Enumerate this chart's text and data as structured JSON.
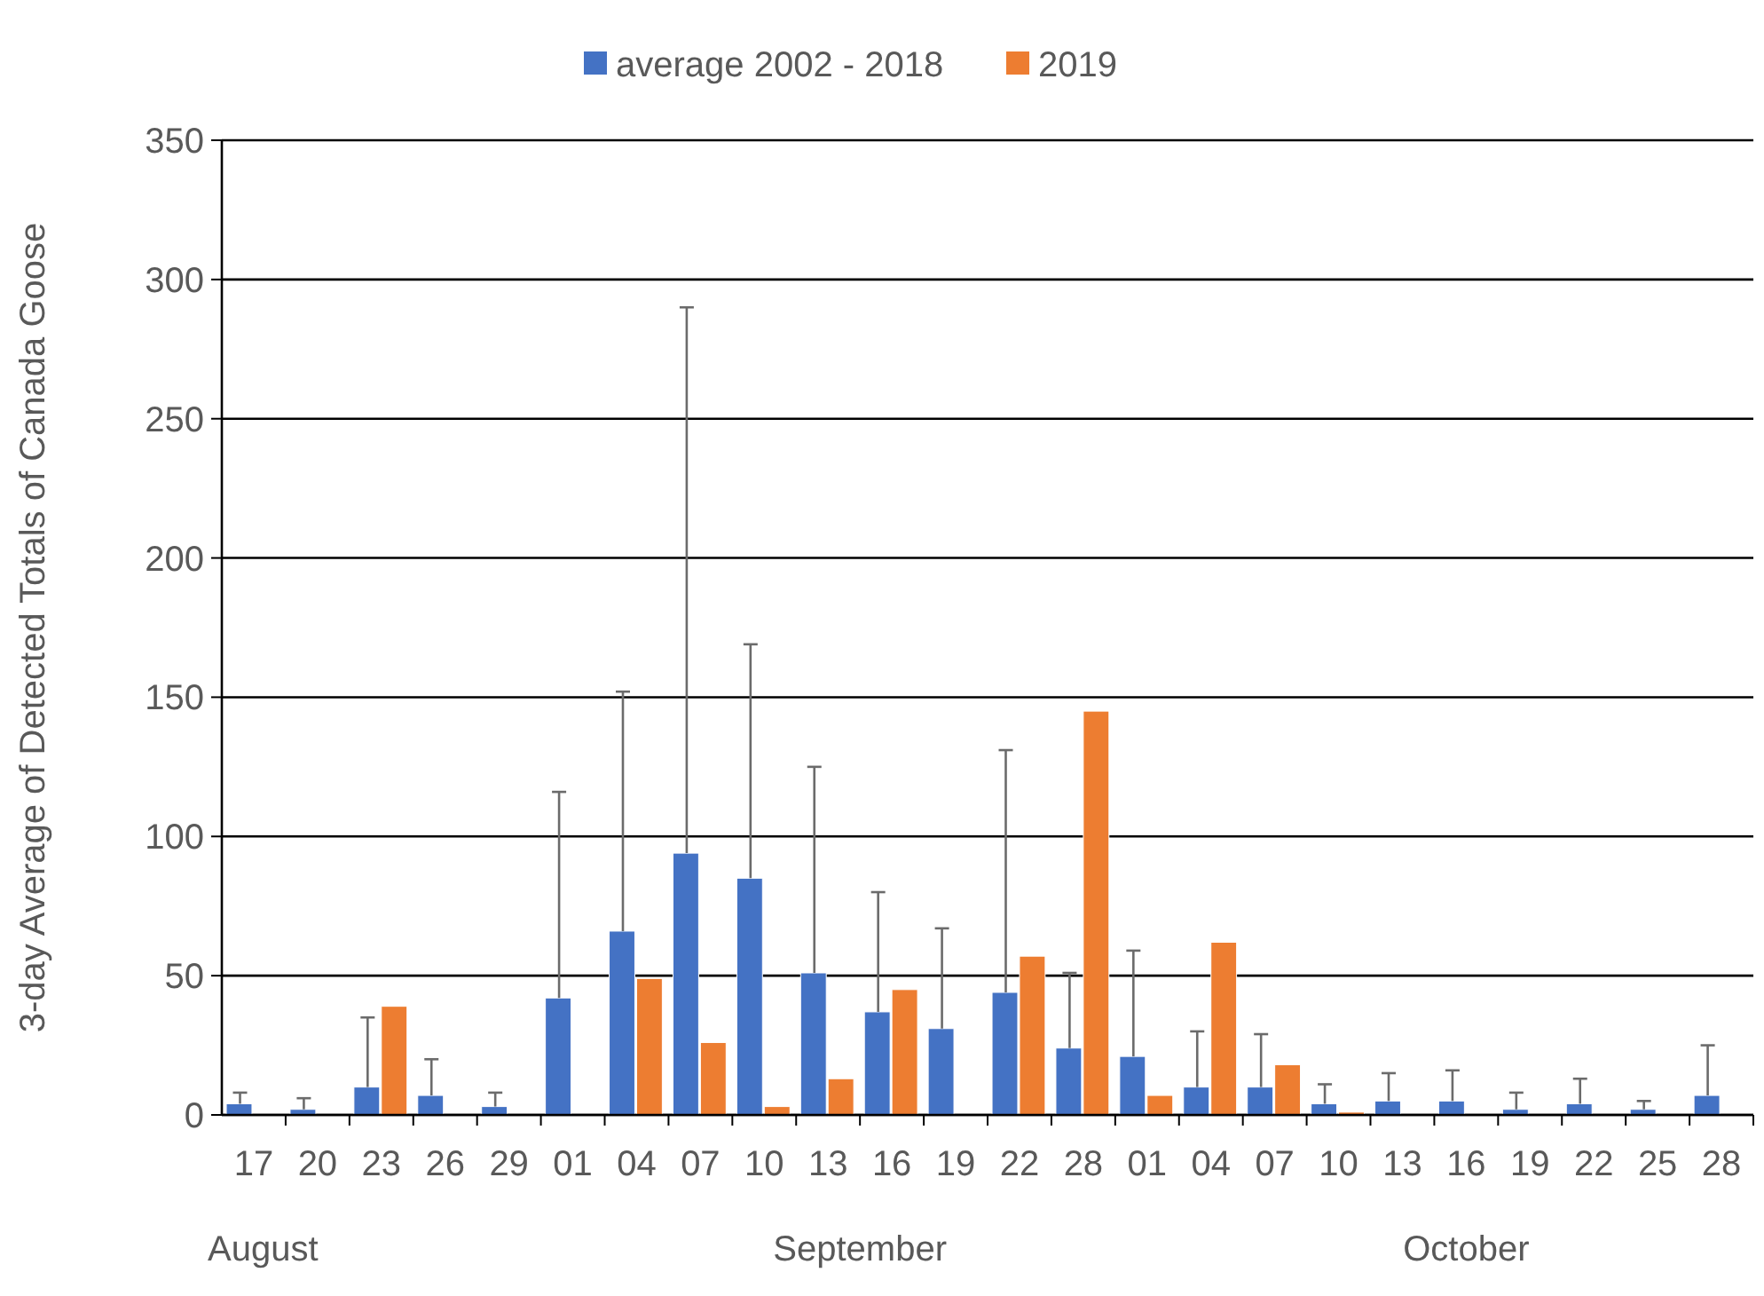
{
  "chart_data": {
    "type": "bar",
    "ylabel": "3-day Average of Detected Totals of Canada Goose",
    "categories": [
      "17",
      "20",
      "23",
      "26",
      "29",
      "01",
      "04",
      "07",
      "10",
      "13",
      "16",
      "19",
      "22",
      "28",
      "01",
      "04",
      "07",
      "10",
      "13",
      "16",
      "19",
      "22",
      "25",
      "28"
    ],
    "series": [
      {
        "name": "average 2002 - 2018",
        "color": "#4472c4",
        "values": [
          4,
          2,
          10,
          7,
          3,
          42,
          66,
          94,
          85,
          51,
          37,
          31,
          44,
          24,
          21,
          10,
          10,
          4,
          5,
          5,
          2,
          4,
          2,
          7
        ],
        "errors": [
          [
            4,
            8
          ],
          [
            2,
            6
          ],
          [
            10,
            35
          ],
          [
            7,
            20
          ],
          [
            3,
            8
          ],
          [
            42,
            116
          ],
          [
            66,
            152
          ],
          [
            94,
            290
          ],
          [
            85,
            169
          ],
          [
            51,
            125
          ],
          [
            37,
            80
          ],
          [
            31,
            67
          ],
          [
            44,
            131
          ],
          [
            24,
            51
          ],
          [
            21,
            59
          ],
          [
            10,
            30
          ],
          [
            10,
            29
          ],
          [
            4,
            11
          ],
          [
            5,
            15
          ],
          [
            5,
            16
          ],
          [
            2,
            8
          ],
          [
            4,
            13
          ],
          [
            2,
            5
          ],
          [
            7,
            25
          ]
        ]
      },
      {
        "name": "2019",
        "color": "#ed7d31",
        "values": [
          null,
          null,
          39,
          null,
          null,
          null,
          49,
          26,
          3,
          13,
          45,
          null,
          57,
          145,
          7,
          62,
          18,
          1,
          null,
          null,
          null,
          null,
          null,
          null
        ]
      }
    ],
    "ylim": [
      0,
      350
    ],
    "yticks": [
      0,
      50,
      100,
      150,
      200,
      250,
      300,
      350
    ],
    "grid": "y",
    "legend": "top",
    "annotations": [
      "August",
      "September",
      "October"
    ]
  }
}
